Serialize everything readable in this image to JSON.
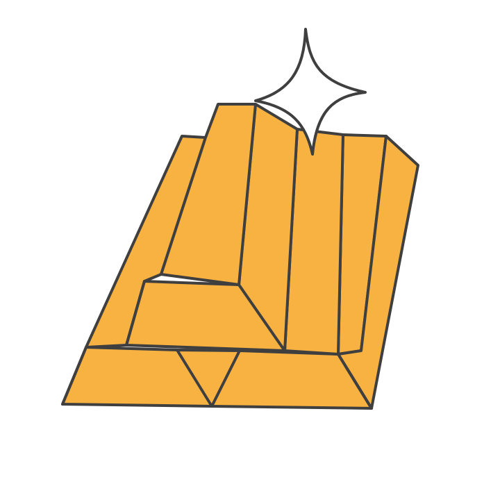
{
  "illustration": {
    "subject": "gold-bars-stack-with-sparkle-icon",
    "colors": {
      "background": "#ffffff",
      "gold": "#f8b241",
      "outline": "#3f3f3f",
      "sparkle": "#ffffff"
    }
  }
}
